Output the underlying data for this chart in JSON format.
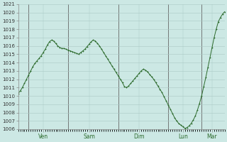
{
  "background_color": "#cce8e4",
  "grid_color": "#aac8c4",
  "line_color": "#2d6b2d",
  "marker_color": "#2d6b2d",
  "ylim": [
    1006,
    1021
  ],
  "day_labels": [
    "Ven",
    "Sam",
    "Dim",
    "Lun",
    "Mar"
  ],
  "y": [
    1010.3,
    1010.6,
    1011.0,
    1011.5,
    1012.0,
    1012.5,
    1013.0,
    1013.5,
    1013.9,
    1014.2,
    1014.5,
    1014.8,
    1015.2,
    1015.6,
    1016.1,
    1016.5,
    1016.7,
    1016.6,
    1016.3,
    1016.0,
    1015.8,
    1015.7,
    1015.7,
    1015.6,
    1015.5,
    1015.4,
    1015.3,
    1015.2,
    1015.1,
    1015.0,
    1015.2,
    1015.4,
    1015.6,
    1015.9,
    1016.2,
    1016.5,
    1016.7,
    1016.6,
    1016.3,
    1016.0,
    1015.6,
    1015.2,
    1014.8,
    1014.4,
    1014.0,
    1013.6,
    1013.2,
    1012.8,
    1012.4,
    1012.0,
    1011.6,
    1011.1,
    1011.0,
    1011.2,
    1011.5,
    1011.8,
    1012.1,
    1012.4,
    1012.7,
    1013.0,
    1013.2,
    1013.1,
    1012.9,
    1012.6,
    1012.3,
    1012.0,
    1011.6,
    1011.2,
    1010.8,
    1010.4,
    1009.9,
    1009.4,
    1008.9,
    1008.4,
    1007.9,
    1007.4,
    1007.0,
    1006.7,
    1006.5,
    1006.3,
    1006.1,
    1006.2,
    1006.4,
    1006.7,
    1007.1,
    1007.6,
    1008.3,
    1009.1,
    1010.0,
    1011.1,
    1012.2,
    1013.4,
    1014.6,
    1015.8,
    1017.0,
    1018.0,
    1018.9,
    1019.4,
    1019.8,
    1020.1
  ]
}
